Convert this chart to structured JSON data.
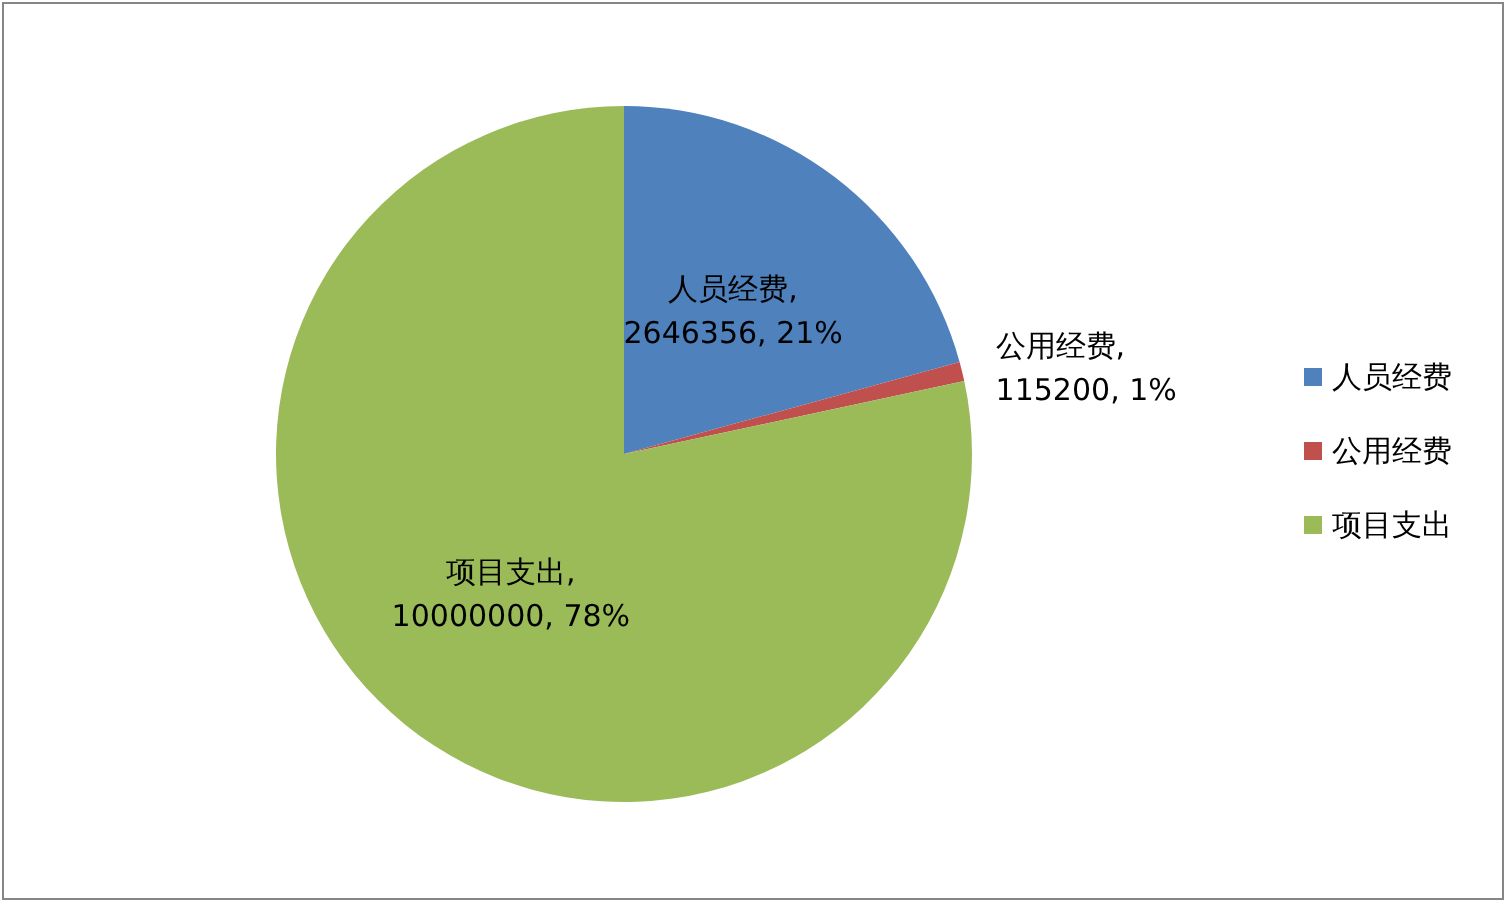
{
  "chart_data": {
    "type": "pie",
    "categories": [
      "人员经费",
      "公用经费",
      "项目支出"
    ],
    "values": [
      2646356,
      115200,
      10000000
    ],
    "colors": [
      "#4f81bd",
      "#c0504d",
      "#9bbb59"
    ],
    "value_labels": [
      "人员经费, 2646356, 21%",
      "公用经费, 115200, 1%",
      "项目支出, 10000000, 78%"
    ],
    "legend": "right"
  }
}
